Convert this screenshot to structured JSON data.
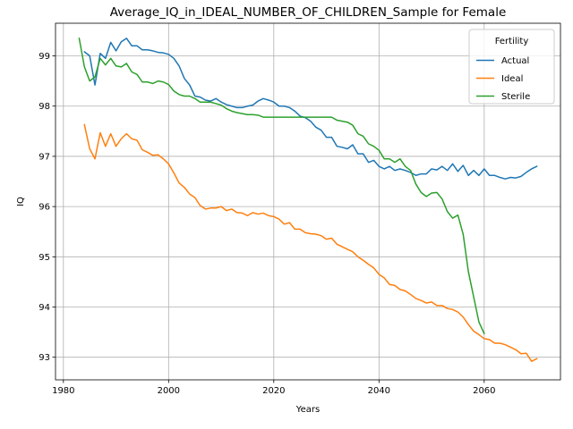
{
  "chart_data": {
    "type": "line",
    "title": "Average_IQ_in_IDEAL_NUMBER_OF_CHILDREN_Sample for Female",
    "xlabel": "Years",
    "ylabel": "IQ",
    "xlim": [
      1978.5,
      2074.5
    ],
    "ylim": [
      92.55,
      99.65
    ],
    "xticks": [
      1980,
      2000,
      2020,
      2040,
      2060
    ],
    "yticks": [
      93,
      94,
      95,
      96,
      97,
      98,
      99
    ],
    "grid": true,
    "legend": {
      "title": "Fertility",
      "placement": "top-right"
    },
    "series": [
      {
        "name": "Actual",
        "color": "#1f77b4",
        "x": [
          1984,
          1985,
          1986,
          1987,
          1988,
          1989,
          1990,
          1991,
          1992,
          1993,
          1994,
          1995,
          1996,
          1997,
          1998,
          1999,
          2000,
          2001,
          2002,
          2003,
          2004,
          2005,
          2006,
          2007,
          2008,
          2009,
          2010,
          2011,
          2012,
          2013,
          2014,
          2015,
          2016,
          2017,
          2018,
          2019,
          2020,
          2021,
          2022,
          2023,
          2024,
          2025,
          2026,
          2027,
          2028,
          2029,
          2030,
          2031,
          2032,
          2033,
          2034,
          2035,
          2036,
          2037,
          2038,
          2039,
          2040,
          2041,
          2042,
          2043,
          2044,
          2045,
          2046,
          2047,
          2048,
          2049,
          2050,
          2051,
          2052,
          2053,
          2054,
          2055,
          2056,
          2057,
          2058,
          2059,
          2060,
          2061,
          2062,
          2063,
          2064,
          2065,
          2066,
          2067,
          2068,
          2069,
          2070
        ],
        "values": [
          99.08,
          99.0,
          98.42,
          99.05,
          98.95,
          99.27,
          99.1,
          99.28,
          99.35,
          99.2,
          99.2,
          99.12,
          99.12,
          99.1,
          99.07,
          99.06,
          99.03,
          98.95,
          98.8,
          98.55,
          98.42,
          98.2,
          98.18,
          98.12,
          98.1,
          98.15,
          98.08,
          98.03,
          98.0,
          97.97,
          97.97,
          98.0,
          98.02,
          98.1,
          98.15,
          98.12,
          98.08,
          98.0,
          98.0,
          97.97,
          97.9,
          97.8,
          97.77,
          97.7,
          97.58,
          97.52,
          97.38,
          97.38,
          97.2,
          97.18,
          97.15,
          97.23,
          97.05,
          97.05,
          96.88,
          96.92,
          96.8,
          96.75,
          96.8,
          96.72,
          96.75,
          96.72,
          96.68,
          96.62,
          96.65,
          96.65,
          96.75,
          96.73,
          96.8,
          96.72,
          96.85,
          96.7,
          96.82,
          96.62,
          96.72,
          96.62,
          96.75,
          96.62,
          96.62,
          96.58,
          96.55,
          96.58,
          96.57,
          96.6,
          96.68,
          96.75,
          96.8
        ]
      },
      {
        "name": "Ideal",
        "color": "#ff7f0e",
        "x": [
          1984,
          1985,
          1986,
          1987,
          1988,
          1989,
          1990,
          1991,
          1992,
          1993,
          1994,
          1995,
          1996,
          1997,
          1998,
          1999,
          2000,
          2001,
          2002,
          2003,
          2004,
          2005,
          2006,
          2007,
          2008,
          2009,
          2010,
          2011,
          2012,
          2013,
          2014,
          2015,
          2016,
          2017,
          2018,
          2019,
          2020,
          2021,
          2022,
          2023,
          2024,
          2025,
          2026,
          2027,
          2028,
          2029,
          2030,
          2031,
          2032,
          2033,
          2034,
          2035,
          2036,
          2037,
          2038,
          2039,
          2040,
          2041,
          2042,
          2043,
          2044,
          2045,
          2046,
          2047,
          2048,
          2049,
          2050,
          2051,
          2052,
          2053,
          2054,
          2055,
          2056,
          2057,
          2058,
          2059,
          2060,
          2061,
          2062,
          2063,
          2064,
          2065,
          2066,
          2067,
          2068,
          2069,
          2070
        ],
        "values": [
          97.63,
          97.15,
          96.95,
          97.47,
          97.2,
          97.45,
          97.2,
          97.35,
          97.45,
          97.35,
          97.32,
          97.13,
          97.08,
          97.02,
          97.03,
          96.95,
          96.85,
          96.67,
          96.47,
          96.38,
          96.25,
          96.18,
          96.02,
          95.95,
          95.97,
          95.97,
          96.0,
          95.92,
          95.95,
          95.88,
          95.87,
          95.82,
          95.88,
          95.85,
          95.87,
          95.82,
          95.8,
          95.75,
          95.65,
          95.68,
          95.55,
          95.55,
          95.48,
          95.46,
          95.45,
          95.42,
          95.35,
          95.37,
          95.25,
          95.2,
          95.15,
          95.1,
          95.0,
          94.93,
          94.85,
          94.78,
          94.65,
          94.58,
          94.45,
          94.43,
          94.35,
          94.32,
          94.25,
          94.17,
          94.13,
          94.08,
          94.1,
          94.03,
          94.03,
          93.97,
          93.95,
          93.9,
          93.8,
          93.65,
          93.52,
          93.45,
          93.37,
          93.35,
          93.28,
          93.28,
          93.25,
          93.2,
          93.15,
          93.07,
          93.08,
          92.92,
          92.97
        ]
      },
      {
        "name": "Sterile",
        "color": "#2ca02c",
        "x": [
          1983,
          1984,
          1985,
          1986,
          1987,
          1988,
          1989,
          1990,
          1991,
          1992,
          1993,
          1994,
          1995,
          1996,
          1997,
          1998,
          1999,
          2000,
          2001,
          2002,
          2003,
          2004,
          2005,
          2006,
          2007,
          2008,
          2009,
          2010,
          2011,
          2012,
          2013,
          2014,
          2015,
          2016,
          2017,
          2018,
          2019,
          2020,
          2021,
          2022,
          2023,
          2024,
          2025,
          2026,
          2027,
          2028,
          2029,
          2030,
          2031,
          2032,
          2033,
          2034,
          2035,
          2036,
          2037,
          2038,
          2039,
          2040,
          2041,
          2042,
          2043,
          2044,
          2045,
          2046,
          2047,
          2048,
          2049,
          2050,
          2051,
          2052,
          2053,
          2054,
          2055,
          2056,
          2057,
          2058,
          2059,
          2060
        ],
        "values": [
          99.35,
          98.78,
          98.5,
          98.58,
          98.95,
          98.82,
          98.95,
          98.8,
          98.78,
          98.85,
          98.68,
          98.63,
          98.48,
          98.48,
          98.45,
          98.5,
          98.48,
          98.43,
          98.3,
          98.23,
          98.2,
          98.2,
          98.15,
          98.08,
          98.08,
          98.08,
          98.05,
          98.02,
          97.95,
          97.9,
          97.87,
          97.85,
          97.83,
          97.83,
          97.82,
          97.78,
          97.78,
          97.78,
          97.78,
          97.78,
          97.78,
          97.78,
          97.78,
          97.78,
          97.78,
          97.78,
          97.78,
          97.78,
          97.78,
          97.72,
          97.7,
          97.68,
          97.62,
          97.45,
          97.4,
          97.25,
          97.2,
          97.12,
          96.95,
          96.95,
          96.88,
          96.95,
          96.8,
          96.72,
          96.45,
          96.28,
          96.2,
          96.27,
          96.28,
          96.15,
          95.9,
          95.77,
          95.83,
          95.45,
          94.7,
          94.2,
          93.7,
          93.47
        ]
      }
    ]
  }
}
